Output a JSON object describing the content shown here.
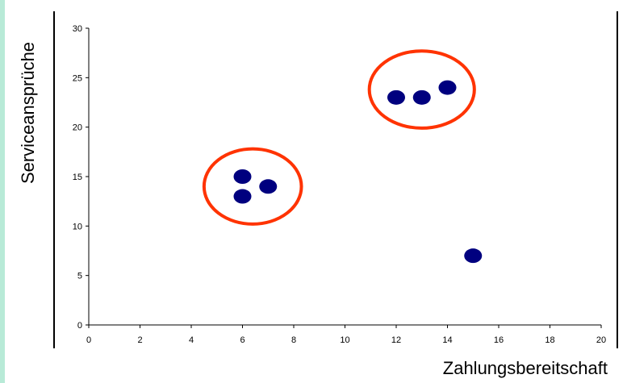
{
  "chart_data": {
    "type": "scatter",
    "xlabel": "Zahlungsbereitschaft",
    "ylabel": "Serviceansprüche",
    "xlim": [
      0,
      20
    ],
    "ylim": [
      0,
      30
    ],
    "xticks": [
      0,
      2,
      4,
      6,
      8,
      10,
      12,
      14,
      16,
      18,
      20
    ],
    "yticks": [
      0,
      5,
      10,
      15,
      20,
      25,
      30
    ],
    "grid": false,
    "series": [
      {
        "color": "#00007f",
        "points": [
          {
            "x": 6,
            "y": 15
          },
          {
            "x": 6,
            "y": 13
          },
          {
            "x": 7,
            "y": 14
          },
          {
            "x": 12,
            "y": 23
          },
          {
            "x": 13,
            "y": 23
          },
          {
            "x": 14,
            "y": 24
          },
          {
            "x": 15,
            "y": 7
          }
        ]
      }
    ],
    "annotations": [
      {
        "type": "cluster-circle",
        "color": "#ff3300",
        "cx": 6.4,
        "cy": 14,
        "rx": 1.9,
        "ry": 3.8
      },
      {
        "type": "cluster-circle",
        "color": "#ff3300",
        "cx": 13.0,
        "cy": 23.8,
        "rx": 2.05,
        "ry": 3.9
      }
    ]
  }
}
